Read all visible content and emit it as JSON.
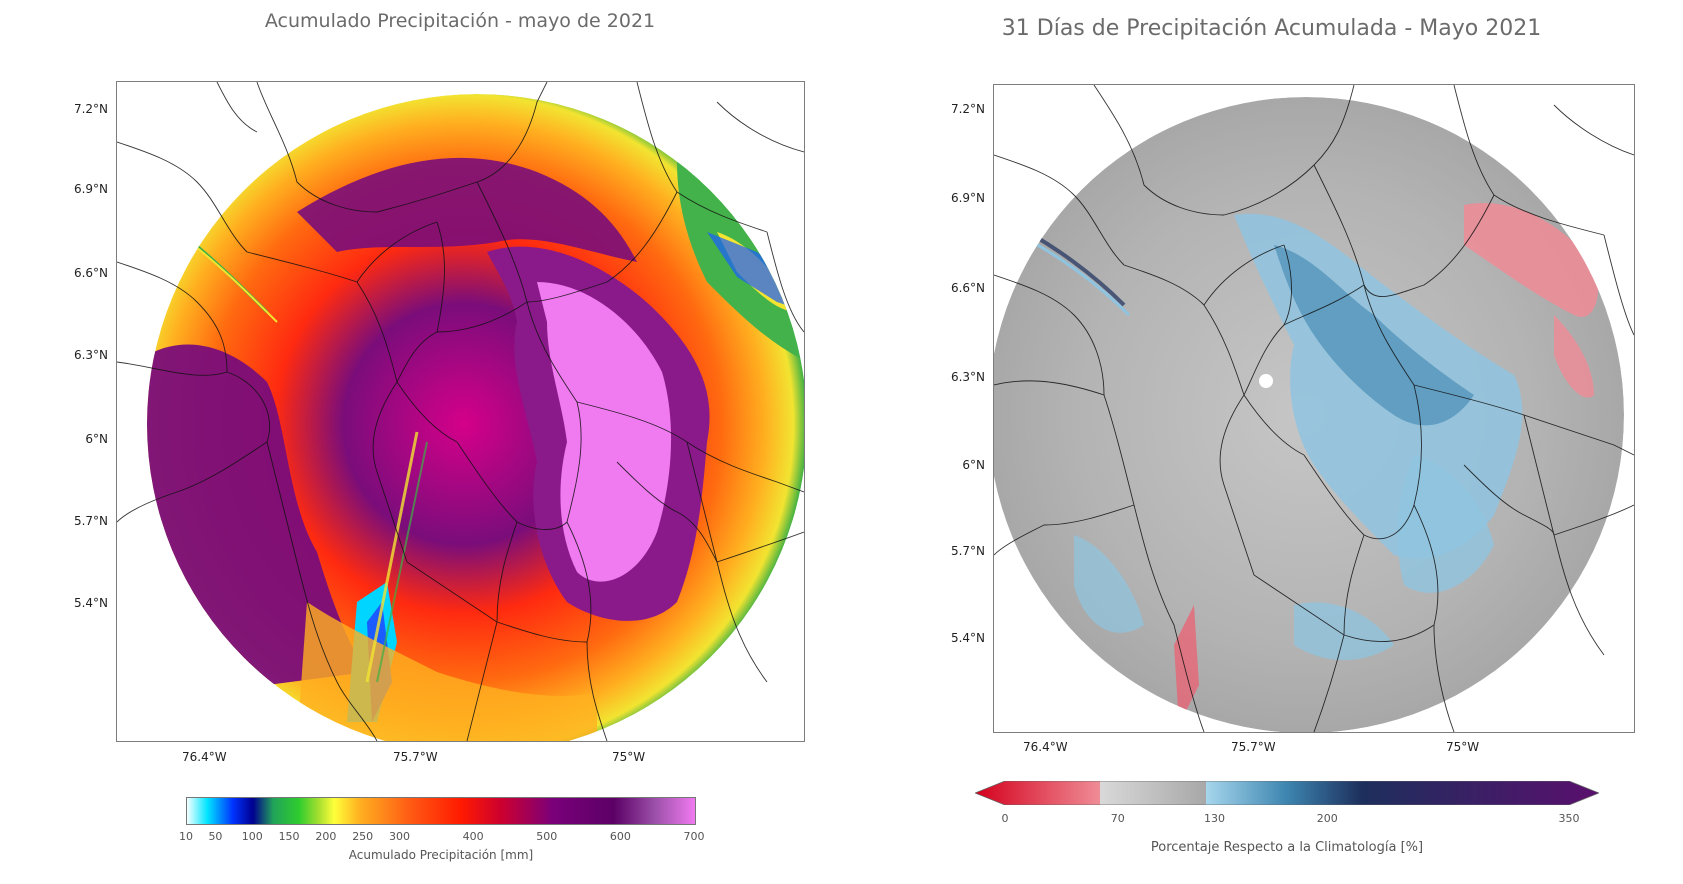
{
  "left_panel": {
    "title": "Acumulado Precipitación - mayo de 2021",
    "lat_ticks": [
      "7.2°N",
      "6.9°N",
      "6.6°N",
      "6.3°N",
      "6°N",
      "5.7°N",
      "5.4°N"
    ],
    "lon_ticks": [
      "76.4°W",
      "75.7°W",
      "75°W"
    ],
    "colorbar": {
      "label": "Acumulado Precipitación [mm]",
      "ticks": [
        "10",
        "50",
        "100",
        "150",
        "200",
        "250",
        "300",
        "400",
        "500",
        "600",
        "700"
      ],
      "tick_values": [
        10,
        50,
        100,
        150,
        200,
        250,
        300,
        400,
        500,
        600,
        700
      ],
      "range": [
        10,
        700
      ],
      "colors": [
        "#f4ffff",
        "#00e5ff",
        "#0033ff",
        "#00008f",
        "#22a35a",
        "#2ecc2e",
        "#a8e030",
        "#ffff3a",
        "#ffb020",
        "#ff5a14",
        "#ff1a00",
        "#cc0030",
        "#7a007a",
        "#5c0066",
        "#9a4fa8",
        "#f07af0"
      ]
    }
  },
  "right_panel": {
    "title": "31 Días de Precipitación Acumulada - Mayo 2021",
    "lat_ticks": [
      "7.2°N",
      "6.9°N",
      "6.6°N",
      "6.3°N",
      "6°N",
      "5.7°N",
      "5.4°N"
    ],
    "lon_ticks": [
      "76.4°W",
      "75.7°W",
      "75°W"
    ],
    "colorbar": {
      "label": "Porcentaje Respecto a la Climatología [%]",
      "ticks": [
        "0",
        "70",
        "130",
        "200",
        "350"
      ],
      "tick_values": [
        0,
        70,
        130,
        200,
        350
      ],
      "range": [
        0,
        350
      ],
      "colors": [
        "#d4001c",
        "#ef8c96",
        "#d9d9d9",
        "#a8a8a8",
        "#a6d6ec",
        "#3d85b0",
        "#1d2f5c",
        "#5a0f6e"
      ]
    }
  },
  "map_colors": {
    "left_ring_outer": "#3cb043",
    "left_ring_yellow": "#f2e431",
    "left_ring_orange": "#ff8a1e",
    "left_ring_red": "#ff2a10",
    "left_ring_purple": "#7a0d7a",
    "left_core_pink": "#f07af0",
    "right_base_gray": "#bdbdbd",
    "right_blue": "#8fc4e0",
    "right_red": "#f08b96"
  }
}
